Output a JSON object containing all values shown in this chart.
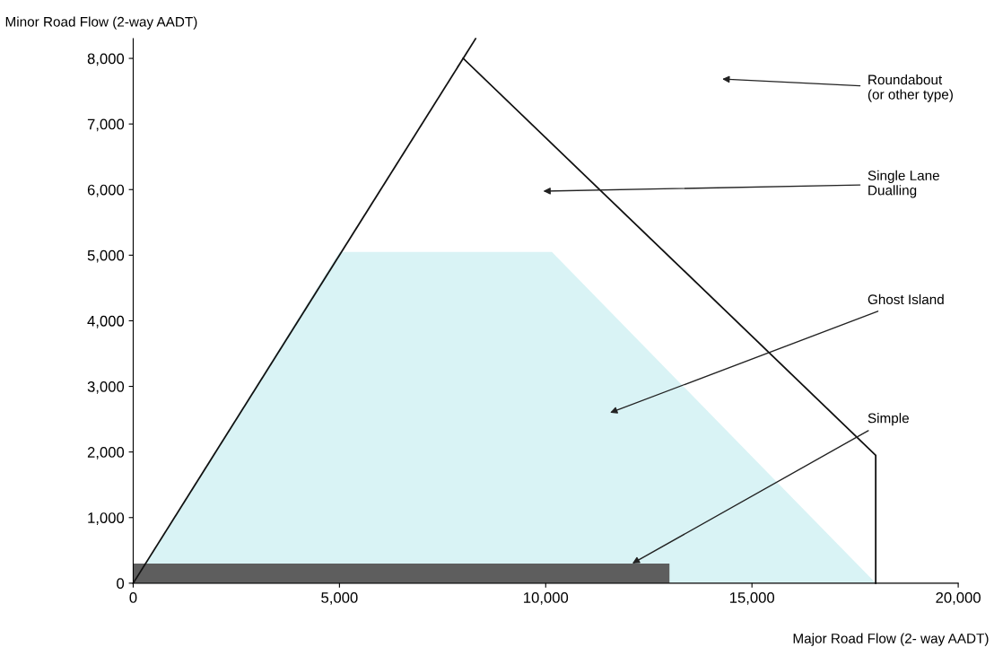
{
  "chart_data": {
    "type": "area",
    "xlabel": "Major Road Flow (2- way AADT)",
    "ylabel": "Minor Road Flow (2-way AADT)",
    "xlim": [
      0,
      20000
    ],
    "ylim": [
      0,
      8300
    ],
    "xticks": [
      0,
      {
        "value": 5000,
        "label": "5,000"
      },
      {
        "value": 10000,
        "label": "10,000"
      },
      {
        "value": 15000,
        "label": "15,000"
      },
      {
        "value": 20000,
        "label": "20,000"
      }
    ],
    "yticks": [
      0,
      {
        "value": 1000,
        "label": "1,000"
      },
      {
        "value": 2000,
        "label": "2,000"
      },
      {
        "value": 3000,
        "label": "3,000"
      },
      {
        "value": 4000,
        "label": "4,000"
      },
      {
        "value": 5000,
        "label": "5,000"
      },
      {
        "value": 6000,
        "label": "6,000"
      },
      {
        "value": 7000,
        "label": "7,000"
      },
      {
        "value": 8000,
        "label": "8,000"
      }
    ],
    "grid": false,
    "legend": false,
    "series": [
      {
        "color": "#d9f3f5",
        "x": [
          0,
          5000,
          10150,
          18000
        ],
        "values": [
          0,
          5050,
          5050,
          0
        ]
      },
      {
        "color": "#5e5e5e",
        "x": [
          0,
          13000
        ],
        "values": [
          300,
          300
        ]
      },
      {
        "type": "line",
        "color": "#111111",
        "x": [
          0,
          8300
        ],
        "values": [
          0,
          8300
        ]
      },
      {
        "type": "line",
        "color": "#111111",
        "x": [
          8000,
          18000,
          18000
        ],
        "values": [
          8000,
          1950,
          0
        ]
      }
    ],
    "annotations": [
      "Roundabout\n(or other type)",
      "Single Lane\nDualling",
      "Ghost Island",
      {
        "text": "Simple",
        "x": 12100,
        "y": 300
      }
    ]
  }
}
